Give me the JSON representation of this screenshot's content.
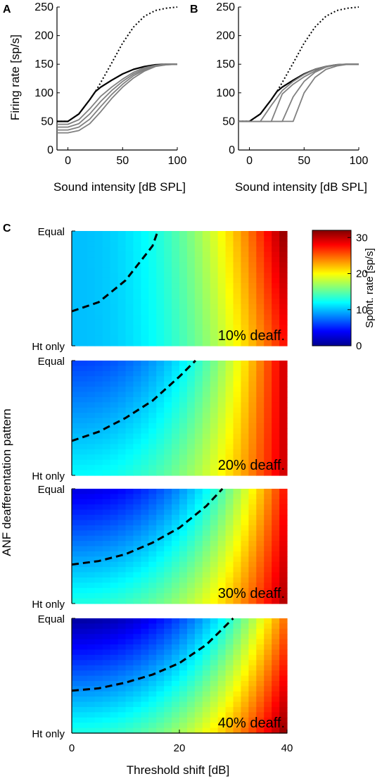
{
  "panel_letters": {
    "a": "A",
    "b": "B",
    "c": "C"
  },
  "colors": {
    "axis": "#000000",
    "reference_curve": "#000000",
    "shifted_curves": "#808080",
    "boundary_dash": "#000000",
    "colormap": "jet"
  },
  "chart_data": [
    {
      "id": "A",
      "type": "line",
      "xlabel": "Sound intensity [dB SPL]",
      "ylabel": "Firing rate [sp/s]",
      "xlim": [
        -10,
        100
      ],
      "ylim": [
        0,
        250
      ],
      "xticks": [
        0,
        50,
        100
      ],
      "yticks": [
        0,
        50,
        100,
        150,
        200,
        250
      ],
      "series": [
        {
          "style": "dotted",
          "color": "#000000",
          "x": [
            -10,
            0,
            10,
            20,
            25,
            30,
            40,
            50,
            60,
            70,
            80,
            90,
            95,
            100
          ],
          "y": [
            50,
            50,
            63,
            88,
            102,
            118,
            152,
            187,
            215,
            234,
            244,
            248,
            249,
            250
          ]
        },
        {
          "style": "solid",
          "color": "#000000",
          "x": [
            -10,
            0,
            10,
            20,
            25,
            30,
            40,
            50,
            60,
            70,
            80,
            90,
            100
          ],
          "y": [
            50,
            50,
            63,
            88,
            102,
            110,
            122,
            133,
            141,
            146,
            149,
            150,
            150
          ]
        },
        {
          "style": "solid",
          "color": "#808080",
          "x": [
            -10,
            0,
            10,
            20,
            30,
            40,
            50,
            60,
            70,
            80,
            90,
            100
          ],
          "y": [
            45,
            45,
            53,
            72,
            94,
            110,
            124,
            136,
            144,
            148,
            150,
            150
          ]
        },
        {
          "style": "solid",
          "color": "#808080",
          "x": [
            -10,
            0,
            10,
            20,
            30,
            40,
            50,
            60,
            70,
            80,
            90,
            100
          ],
          "y": [
            40,
            40,
            46,
            63,
            85,
            104,
            120,
            133,
            142,
            147,
            150,
            150
          ]
        },
        {
          "style": "solid",
          "color": "#808080",
          "x": [
            -10,
            0,
            10,
            20,
            30,
            40,
            50,
            60,
            70,
            80,
            90,
            100
          ],
          "y": [
            35,
            35,
            40,
            54,
            76,
            97,
            115,
            130,
            140,
            147,
            149,
            150
          ]
        },
        {
          "style": "solid",
          "color": "#808080",
          "x": [
            -10,
            0,
            10,
            20,
            30,
            40,
            50,
            60,
            70,
            80,
            90,
            100
          ],
          "y": [
            30,
            30,
            34,
            46,
            67,
            90,
            110,
            126,
            138,
            146,
            149,
            150
          ]
        }
      ]
    },
    {
      "id": "B",
      "type": "line",
      "xlabel": "Sound intensity [dB SPL]",
      "ylabel": "",
      "xlim": [
        -10,
        100
      ],
      "ylim": [
        0,
        250
      ],
      "xticks": [
        0,
        50,
        100
      ],
      "yticks": [
        0,
        50,
        100,
        150,
        200,
        250
      ],
      "series": [
        {
          "style": "dotted",
          "color": "#000000",
          "x": [
            -10,
            0,
            10,
            20,
            25,
            30,
            40,
            50,
            60,
            70,
            80,
            90,
            95,
            100
          ],
          "y": [
            50,
            50,
            63,
            88,
            102,
            118,
            152,
            187,
            215,
            234,
            244,
            248,
            249,
            250
          ]
        },
        {
          "style": "solid",
          "color": "#000000",
          "x": [
            -10,
            0,
            10,
            20,
            25,
            30,
            40,
            50,
            60,
            70,
            80,
            90,
            100
          ],
          "y": [
            50,
            50,
            63,
            88,
            102,
            110,
            122,
            133,
            141,
            146,
            149,
            150,
            150
          ]
        },
        {
          "style": "solid",
          "color": "#808080",
          "x": [
            -10,
            0,
            10,
            20,
            25,
            30,
            40,
            50,
            60,
            70,
            80,
            90,
            100
          ],
          "y": [
            50,
            50,
            50,
            50,
            50,
            50,
            50,
            100,
            127,
            141,
            147,
            150,
            150
          ]
        },
        {
          "style": "solid",
          "color": "#808080",
          "x": [
            -10,
            0,
            10,
            20,
            30,
            40,
            50,
            60,
            70,
            80,
            90,
            100
          ],
          "y": [
            50,
            50,
            50,
            50,
            50,
            93,
            120,
            136,
            145,
            149,
            150,
            150
          ]
        },
        {
          "style": "solid",
          "color": "#808080",
          "x": [
            -10,
            0,
            10,
            20,
            30,
            40,
            50,
            60,
            70,
            80,
            90,
            100
          ],
          "y": [
            50,
            50,
            50,
            50,
            98,
            115,
            128,
            138,
            145,
            149,
            150,
            150
          ]
        },
        {
          "style": "solid",
          "color": "#808080",
          "x": [
            -10,
            0,
            10,
            20,
            30,
            40,
            50,
            60,
            70,
            80,
            90,
            100
          ],
          "y": [
            50,
            50,
            50,
            78,
            104,
            120,
            132,
            141,
            146,
            149,
            150,
            150
          ]
        }
      ]
    },
    {
      "id": "C",
      "type": "heatmap",
      "xlabel": "Threshold shift [dB]",
      "ylabel": "ANF deafferentation pattern",
      "xlim": [
        0,
        40
      ],
      "xticks": [
        0,
        20,
        40
      ],
      "ytick_labels": {
        "top": "Equal",
        "bottom": "Ht only"
      },
      "grid_cols": 28,
      "grid_rows": 22,
      "colorbar": {
        "label": "Spont. rate [sp/s]",
        "lim": [
          0,
          32
        ],
        "ticks": [
          0,
          10,
          20,
          30
        ],
        "colormap": "jet"
      },
      "panels": [
        {
          "label": "10% deaff.",
          "rate_equal": [
            10,
            32
          ],
          "rate_ht_only": [
            10,
            28
          ],
          "boundary": {
            "x": [
              0,
              5,
              10,
              15,
              16
            ],
            "y": [
              0.3,
              0.38,
              0.57,
              0.87,
              1.0
            ]
          }
        },
        {
          "label": "20% deaff.",
          "rate_equal": [
            6,
            30
          ],
          "rate_ht_only": [
            12,
            30
          ],
          "boundary": {
            "x": [
              0,
              5,
              10,
              15,
              20,
              23
            ],
            "y": [
              0.3,
              0.38,
              0.5,
              0.65,
              0.86,
              1.0
            ]
          }
        },
        {
          "label": "30% deaff.",
          "rate_equal": [
            3,
            28
          ],
          "rate_ht_only": [
            13,
            31
          ],
          "boundary": {
            "x": [
              0,
              5,
              10,
              15,
              20,
              25,
              28
            ],
            "y": [
              0.34,
              0.37,
              0.43,
              0.53,
              0.66,
              0.85,
              1.0
            ]
          }
        },
        {
          "label": "40% deaff.",
          "rate_equal": [
            1,
            25
          ],
          "rate_ht_only": [
            13,
            32
          ],
          "boundary": {
            "x": [
              0,
              5,
              10,
              15,
              20,
              25,
              30
            ],
            "y": [
              0.37,
              0.39,
              0.44,
              0.51,
              0.61,
              0.77,
              1.0
            ]
          }
        }
      ]
    }
  ]
}
